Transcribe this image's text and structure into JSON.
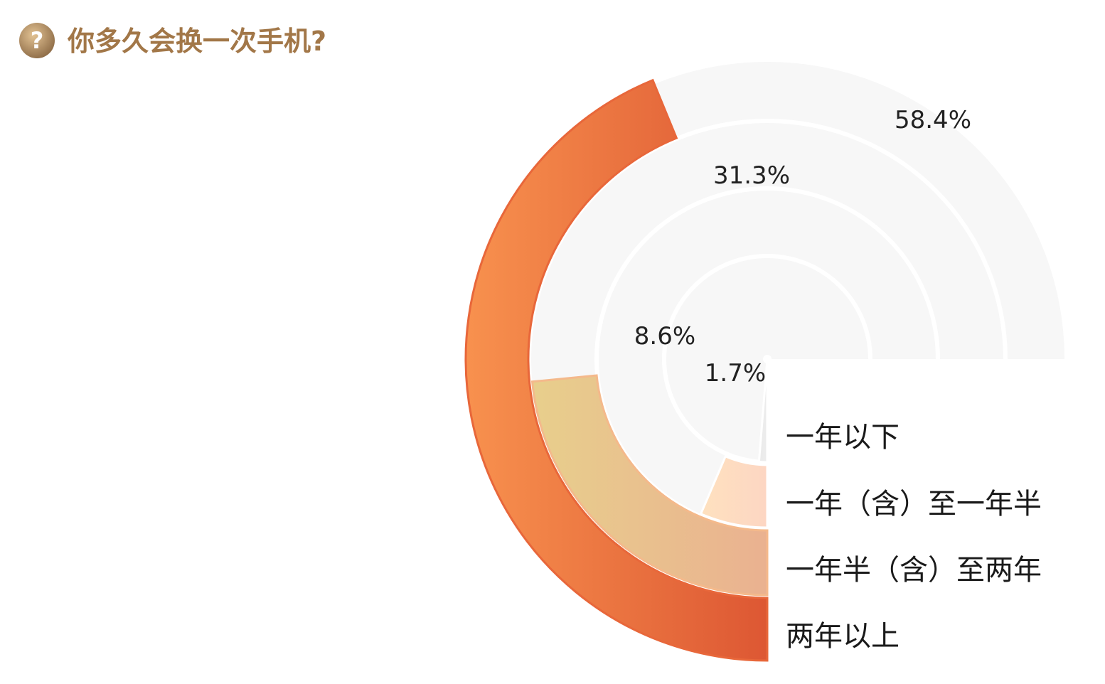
{
  "title": "你多久会换一次手机?",
  "title_icon": "question-circle-icon",
  "colors": {
    "title": "#a27748",
    "icon_light": "#d8b586",
    "icon_dark": "#8c6a45"
  },
  "chart_data": {
    "type": "radial-bar",
    "title": "你多久会换一次手机?",
    "categories": [
      "一年以下",
      "一年（含）至一年半",
      "一年半（含）至两年",
      "两年以上"
    ],
    "values": [
      1.7,
      8.6,
      31.3,
      58.4
    ],
    "labels": [
      "1.7%",
      "8.6%",
      "31.3%",
      "58.4%"
    ],
    "unit": "%",
    "max": 100,
    "legend": "right",
    "series_colors": [
      [
        "#c7c7c7",
        "#ededed"
      ],
      [
        "#fff2b8",
        "#fdd6c3"
      ],
      [
        "#e8cf8c",
        "#eab190"
      ],
      [
        "#f8914e",
        "#d4442a"
      ]
    ],
    "track_color": "#f7f7f7"
  }
}
